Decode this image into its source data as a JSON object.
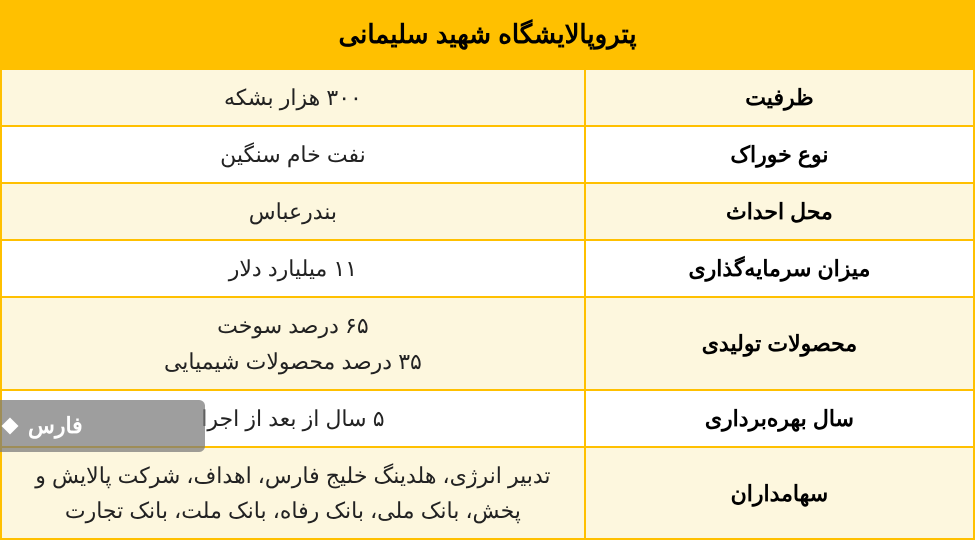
{
  "table": {
    "title": "پتروپالایشگاه شهید سلیمانی",
    "header_bg": "#ffc000",
    "header_color": "#000000",
    "row_alt_bg": "#fdf7de",
    "row_bg": "#ffffff",
    "border_color": "#ffc000",
    "label_color": "#000000",
    "value_color": "#222222",
    "rows": [
      {
        "label": "ظرفیت",
        "value": "۳۰۰ هزار بشکه"
      },
      {
        "label": "نوع خوراک",
        "value": "نفت خام سنگین"
      },
      {
        "label": "محل احداث",
        "value": "بندرعباس"
      },
      {
        "label": "میزان سرمایه‌گذاری",
        "value": "۱۱ میلیارد دلار"
      },
      {
        "label": "محصولات تولیدی",
        "value": "۶۵ درصد سوخت\n۳۵ درصد محصولات شیمیایی"
      },
      {
        "label": "سال بهره‌برداری",
        "value": "۵ سال از بعد از اجرا"
      },
      {
        "label": "سهامداران",
        "value": "تدبیر انرژی، هلدینگ خلیج فارس، اهداف، شرکت پالایش و پخش، بانک ملی، بانک رفاه، بانک ملت، بانک تجارت"
      }
    ]
  },
  "watermark": {
    "text": "فارس",
    "bg": "rgba(120,120,120,0.72)",
    "color": "#ffffff"
  }
}
